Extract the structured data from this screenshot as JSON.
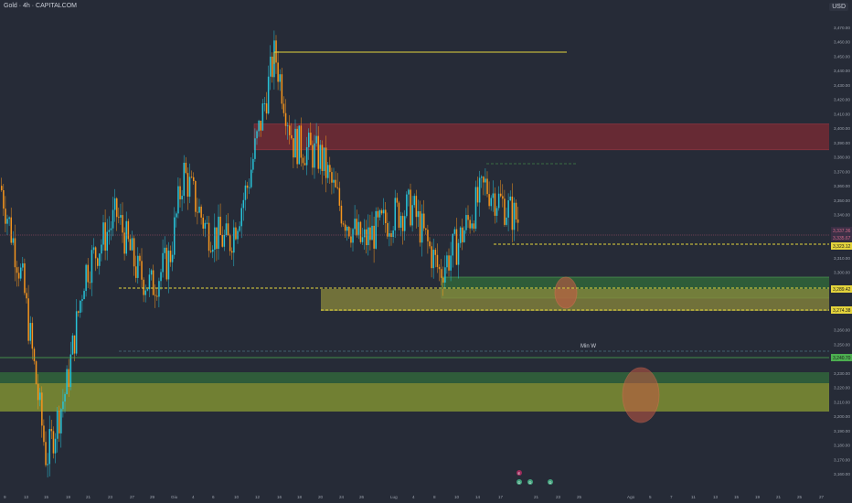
{
  "header": {
    "symbol": "Gold · 4h · CAPITALCOM",
    "currency": "USD"
  },
  "axis": {
    "y_ticks": [
      "3,470.00",
      "3,460.00",
      "3,450.00",
      "3,440.00",
      "3,430.00",
      "3,420.00",
      "3,410.00",
      "3,400.00",
      "3,390.00",
      "3,380.00",
      "3,370.00",
      "3,360.00",
      "3,350.00",
      "3,340.00",
      "3,330.00",
      "3,310.00",
      "3,300.00",
      "3,290.00",
      "3,260.00",
      "3,250.00",
      "3,230.00",
      "3,220.00",
      "3,210.00",
      "3,200.00",
      "3,190.00",
      "3,180.00",
      "3,170.00",
      "3,160.00"
    ],
    "x_ticks": [
      "9",
      "13",
      "15",
      "19",
      "21",
      "23",
      "27",
      "29",
      "Giu",
      "4",
      "6",
      "10",
      "12",
      "16",
      "18",
      "20",
      "24",
      "26",
      "Lug",
      "4",
      "8",
      "10",
      "14",
      "17",
      "21",
      "23",
      "25",
      "Ago",
      "5",
      "7",
      "11",
      "13",
      "15",
      "19",
      "21",
      "25",
      "27"
    ]
  },
  "price_labels": {
    "current_top": "3,337.36",
    "current_bottom": "3,335.67",
    "level_1": "3,323.12",
    "level_2": "3,289.42",
    "level_3": "3,274.38",
    "level_4": "3,240.70"
  },
  "annotation": {
    "min_w": "Min W"
  },
  "events": [
    "E",
    "D",
    "D",
    "D"
  ],
  "colors": {
    "bull": "#27c3d8",
    "bear": "#f5951d",
    "supply_zone": "#6b2a34",
    "demand_zone": "#2f5f3a",
    "yellow_line": "#e4d43c",
    "green_line": "#4caf50",
    "circle": "#c45a44"
  },
  "chart_data": {
    "type": "candlestick",
    "title": "Gold · 4h · CAPITALCOM",
    "currency": "USD",
    "ylim": [
      3155,
      3477
    ],
    "approx_price_path": [
      {
        "x": "9",
        "y": 3360
      },
      {
        "x": "13",
        "y": 3290
      },
      {
        "x": "15",
        "y": 3170
      },
      {
        "x": "19",
        "y": 3220
      },
      {
        "x": "21",
        "y": 3300
      },
      {
        "x": "23",
        "y": 3340
      },
      {
        "x": "27",
        "y": 3300
      },
      {
        "x": "29",
        "y": 3290
      },
      {
        "x": "Giu",
        "y": 3310
      },
      {
        "x": "4",
        "y": 3370
      },
      {
        "x": "6",
        "y": 3330
      },
      {
        "x": "10",
        "y": 3320
      },
      {
        "x": "12",
        "y": 3360
      },
      {
        "x": "16",
        "y": 3452
      },
      {
        "x": "18",
        "y": 3390
      },
      {
        "x": "20",
        "y": 3380
      },
      {
        "x": "24",
        "y": 3340
      },
      {
        "x": "26",
        "y": 3320
      },
      {
        "x": "Lug",
        "y": 3340
      },
      {
        "x": "4",
        "y": 3345
      },
      {
        "x": "8",
        "y": 3300
      },
      {
        "x": "10",
        "y": 3320
      },
      {
        "x": "14",
        "y": 3360
      },
      {
        "x": "17",
        "y": 3335
      }
    ],
    "levels": [
      {
        "name": "high",
        "value": 3452
      },
      {
        "name": "level_1",
        "value": 3323.12
      },
      {
        "name": "level_2",
        "value": 3289.42
      },
      {
        "name": "level_3",
        "value": 3274.38
      },
      {
        "name": "min_w",
        "value": 3248
      },
      {
        "name": "level_4",
        "value": 3240.7
      }
    ],
    "zones": [
      {
        "type": "supply",
        "from": 3385,
        "to": 3403
      },
      {
        "type": "demand",
        "from": 3285,
        "to": 3296
      },
      {
        "type": "demand",
        "from": 3275,
        "to": 3290
      },
      {
        "type": "demand",
        "from": 3205,
        "to": 3236
      }
    ]
  }
}
